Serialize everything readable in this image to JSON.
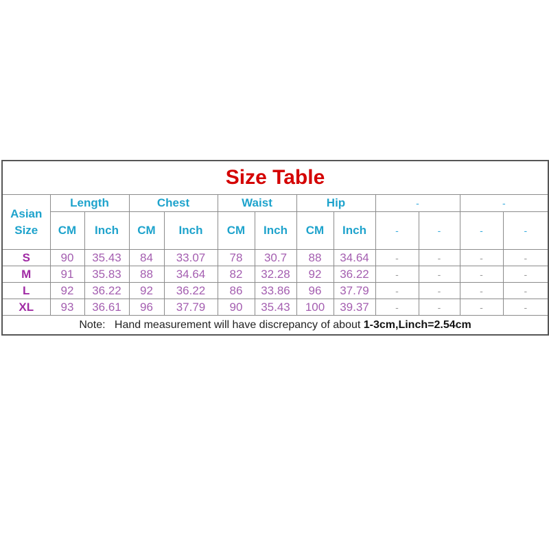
{
  "title": "Size Table",
  "colors": {
    "title": "#d40000",
    "header": "#1ea3cc",
    "size_label": "#a02aa4",
    "value": "#a45eb0"
  },
  "header": {
    "asian_line1": "Asian",
    "asian_line2": "Size",
    "groups": [
      "Length",
      "Chest",
      "Waist",
      "Hip",
      "-",
      "-"
    ],
    "subheaders": [
      "CM",
      "Inch",
      "CM",
      "Inch",
      "CM",
      "Inch",
      "CM",
      "Inch",
      "-",
      "-",
      "-",
      "-"
    ]
  },
  "rows": [
    {
      "size": "S",
      "values": [
        "90",
        "35.43",
        "84",
        "33.07",
        "78",
        "30.7",
        "88",
        "34.64",
        "-",
        "-",
        "-",
        "-"
      ]
    },
    {
      "size": "M",
      "values": [
        "91",
        "35.83",
        "88",
        "34.64",
        "82",
        "32.28",
        "92",
        "36.22",
        "-",
        "-",
        "-",
        "-"
      ]
    },
    {
      "size": "L",
      "values": [
        "92",
        "36.22",
        "92",
        "36.22",
        "86",
        "33.86",
        "96",
        "37.79",
        "-",
        "-",
        "-",
        "-"
      ]
    },
    {
      "size": "XL",
      "values": [
        "93",
        "36.61",
        "96",
        "37.79",
        "90",
        "35.43",
        "100",
        "39.37",
        "-",
        "-",
        "-",
        "-"
      ]
    }
  ],
  "note": {
    "label": "Note:",
    "text": "Hand measurement will have discrepancy of about ",
    "bold": "1-3cm,Linch=2.54cm"
  }
}
